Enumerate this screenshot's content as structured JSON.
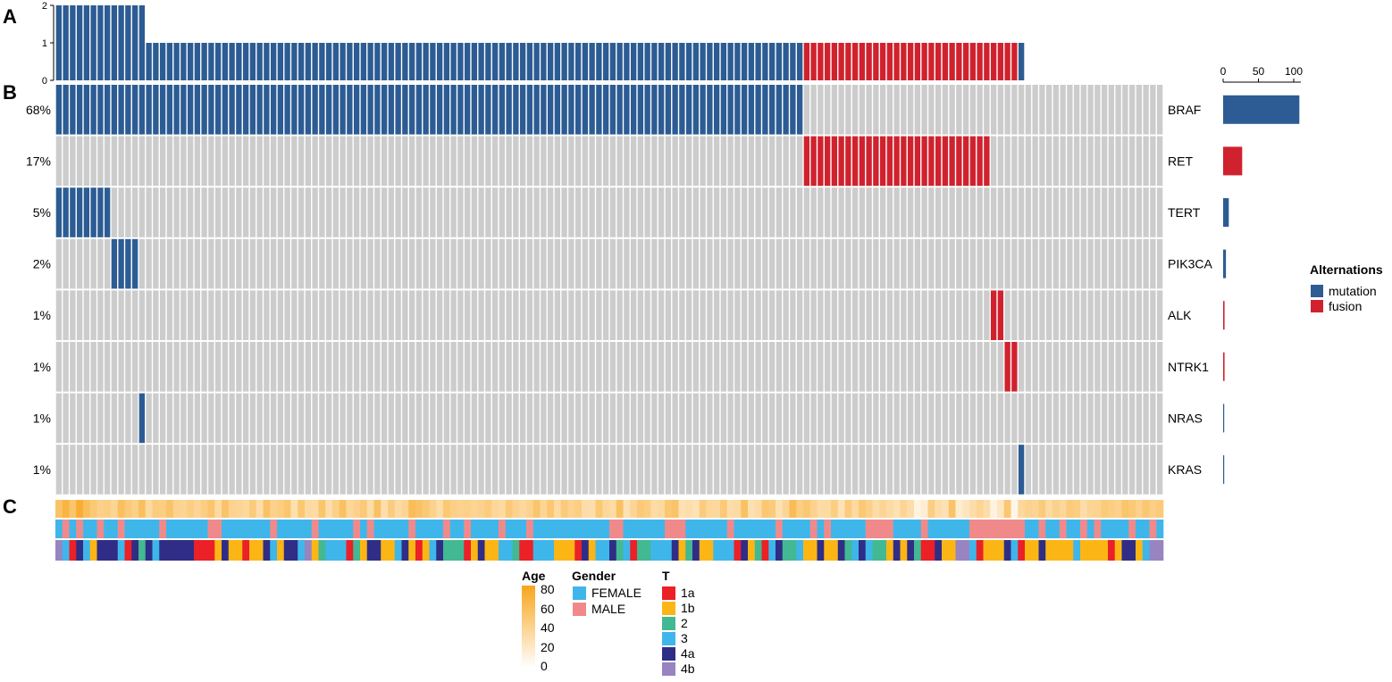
{
  "panel_labels": [
    "A",
    "B",
    "C"
  ],
  "chart_data": {
    "type": "heatmap",
    "title": "",
    "n_samples": 160,
    "top_bar": {
      "ylim": [
        0,
        2
      ],
      "ticks": [
        "0",
        "1",
        "2"
      ],
      "segments": [
        {
          "from": 0,
          "to": 13,
          "value": 2,
          "type": "mutation"
        },
        {
          "from": 13,
          "to": 108,
          "value": 1,
          "type": "mutation"
        },
        {
          "from": 108,
          "to": 139,
          "value": 1,
          "type": "fusion"
        },
        {
          "from": 139,
          "to": 140,
          "value": 1,
          "type": "mutation"
        }
      ]
    },
    "genes": [
      {
        "name": "BRAF",
        "pct": "68%",
        "count": 108,
        "type": "mutation",
        "samples": [
          [
            0,
            108
          ]
        ]
      },
      {
        "name": "RET",
        "pct": "17%",
        "count": 27,
        "type": "fusion",
        "samples": [
          [
            108,
            135
          ]
        ]
      },
      {
        "name": "TERT",
        "pct": "5%",
        "count": 8,
        "type": "mutation",
        "samples": [
          [
            0,
            8
          ]
        ]
      },
      {
        "name": "PIK3CA",
        "pct": "2%",
        "count": 4,
        "type": "mutation",
        "samples": [
          [
            8,
            12
          ]
        ]
      },
      {
        "name": "ALK",
        "pct": "1%",
        "count": 2,
        "type": "fusion",
        "samples": [
          [
            135,
            137
          ]
        ]
      },
      {
        "name": "NTRK1",
        "pct": "1%",
        "count": 2,
        "type": "fusion",
        "samples": [
          [
            137,
            139
          ]
        ]
      },
      {
        "name": "NRAS",
        "pct": "1%",
        "count": 1,
        "type": "mutation",
        "samples": [
          [
            12,
            13
          ]
        ]
      },
      {
        "name": "KRAS",
        "pct": "1%",
        "count": 1,
        "type": "mutation",
        "samples": [
          [
            139,
            140
          ]
        ]
      }
    ],
    "right_bar": {
      "xlim": [
        0,
        110
      ],
      "ticks": [
        "0",
        "50",
        "100"
      ]
    },
    "alteration_legend": {
      "title": "Alternations",
      "entries": [
        {
          "label": "mutation",
          "color": "#2c5c93"
        },
        {
          "label": "fusion",
          "color": "#d0222e"
        }
      ]
    },
    "annotations": {
      "age": {
        "title": "Age",
        "range": [
          0,
          80
        ],
        "ticks": [
          "0",
          "20",
          "40",
          "60",
          "80"
        ],
        "values": [
          53,
          66,
          52,
          72,
          57,
          49,
          42,
          44,
          38,
          56,
          48,
          42,
          56,
          34,
          45,
          44,
          53,
          40,
          38,
          44,
          37,
          44,
          52,
          33,
          53,
          40,
          38,
          35,
          46,
          30,
          54,
          41,
          44,
          51,
          28,
          50,
          34,
          32,
          52,
          30,
          42,
          55,
          36,
          41,
          48,
          31,
          55,
          29,
          45,
          33,
          37,
          59,
          54,
          49,
          41,
          31,
          49,
          43,
          40,
          42,
          38,
          41,
          45,
          36,
          33,
          48,
          40,
          35,
          40,
          52,
          37,
          50,
          33,
          47,
          40,
          44,
          30,
          29,
          49,
          36,
          32,
          55,
          27,
          37,
          48,
          44,
          32,
          34,
          50,
          53,
          27,
          29,
          26,
          45,
          36,
          35,
          48,
          30,
          33,
          55,
          28,
          32,
          50,
          46,
          28,
          37,
          60,
          44,
          50,
          40,
          32,
          33,
          44,
          26,
          46,
          33,
          49,
          42,
          31,
          37,
          32,
          27,
          37,
          30,
          11,
          15,
          44,
          30,
          27,
          53,
          17,
          23,
          30,
          38,
          30,
          11,
          22,
          50,
          8,
          35,
          40,
          38,
          46,
          33,
          41,
          36,
          47,
          44,
          31,
          38,
          39,
          46,
          44,
          41,
          52,
          48,
          41,
          50,
          43,
          47
        ]
      },
      "gender": {
        "title": "Gender",
        "categories": [
          "FEMALE",
          "MALE"
        ],
        "colors": [
          "#3fb6ea",
          "#f08a8a"
        ],
        "values": [
          0,
          1,
          0,
          1,
          0,
          0,
          1,
          0,
          0,
          1,
          0,
          0,
          0,
          0,
          0,
          1,
          0,
          0,
          0,
          0,
          0,
          0,
          1,
          1,
          0,
          0,
          0,
          0,
          0,
          0,
          0,
          1,
          0,
          0,
          0,
          0,
          0,
          1,
          0,
          0,
          0,
          0,
          0,
          1,
          0,
          1,
          0,
          0,
          0,
          0,
          0,
          1,
          0,
          0,
          0,
          0,
          1,
          0,
          0,
          1,
          0,
          0,
          0,
          0,
          1,
          0,
          0,
          0,
          1,
          0,
          0,
          0,
          0,
          0,
          0,
          0,
          0,
          0,
          0,
          0,
          1,
          1,
          0,
          0,
          0,
          0,
          0,
          0,
          1,
          1,
          1,
          0,
          0,
          0,
          0,
          0,
          0,
          1,
          0,
          0,
          0,
          0,
          0,
          0,
          1,
          0,
          0,
          0,
          0,
          1,
          0,
          1,
          0,
          0,
          0,
          0,
          0,
          1,
          1,
          1,
          1,
          0,
          0,
          0,
          0,
          1,
          0,
          0,
          0,
          0,
          0,
          0,
          1,
          1,
          1,
          1,
          1,
          1,
          1,
          1,
          0,
          0,
          1,
          0,
          0,
          1,
          0,
          0,
          1,
          0,
          1,
          0,
          0,
          0,
          0,
          1,
          0,
          0,
          1,
          0
        ]
      },
      "t_stage": {
        "title": "T",
        "categories": [
          "1a",
          "1b",
          "2",
          "3",
          "4a",
          "4b"
        ],
        "colors": [
          "#ec2027",
          "#fbb616",
          "#42b992",
          "#3fb6ea",
          "#2f2d86",
          "#9884c0"
        ],
        "values": [
          5,
          3,
          0,
          4,
          3,
          1,
          4,
          4,
          4,
          3,
          0,
          4,
          2,
          4,
          3,
          4,
          4,
          4,
          4,
          4,
          0,
          0,
          0,
          1,
          4,
          1,
          1,
          0,
          1,
          1,
          4,
          3,
          1,
          4,
          4,
          3,
          5,
          1,
          2,
          3,
          3,
          3,
          0,
          2,
          1,
          4,
          4,
          1,
          1,
          3,
          4,
          1,
          0,
          1,
          3,
          4,
          2,
          2,
          2,
          0,
          1,
          4,
          1,
          1,
          3,
          3,
          2,
          0,
          0,
          3,
          3,
          3,
          1,
          1,
          1,
          0,
          4,
          1,
          3,
          3,
          4,
          2,
          3,
          0,
          2,
          2,
          3,
          3,
          3,
          4,
          1,
          2,
          4,
          1,
          1,
          3,
          3,
          3,
          0,
          4,
          1,
          2,
          0,
          3,
          4,
          2,
          2,
          3,
          1,
          1,
          4,
          1,
          1,
          4,
          2,
          3,
          4,
          3,
          2,
          2,
          1,
          4,
          1,
          4,
          2,
          0,
          0,
          4,
          1,
          1,
          5,
          5,
          3,
          0,
          1,
          1,
          1,
          4,
          3,
          0,
          1,
          1,
          4,
          1,
          1,
          1,
          1,
          3,
          1,
          1,
          1,
          1,
          0,
          1,
          4,
          4,
          1,
          3,
          5,
          5
        ]
      }
    }
  }
}
